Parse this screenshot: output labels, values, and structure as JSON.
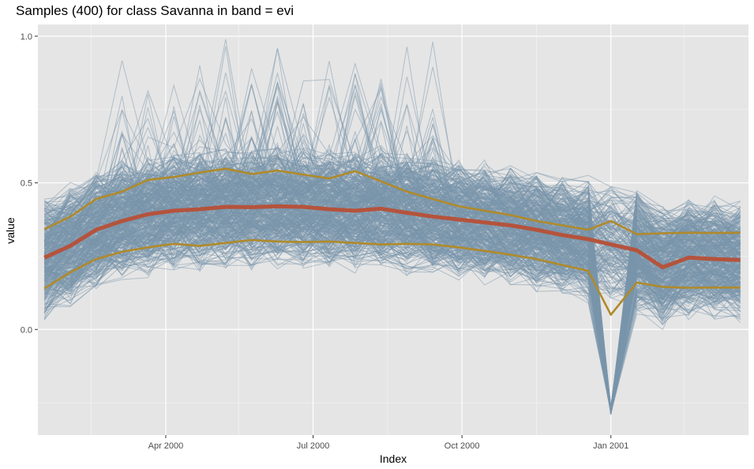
{
  "chart_data": {
    "type": "line",
    "title": "Samples (400) for class Savanna in band = evi",
    "xlabel": "Index",
    "ylabel": "value",
    "x_ticks": [
      {
        "label": "Apr 2000",
        "date": "2000-04-01"
      },
      {
        "label": "Jul 2000",
        "date": "2000-07-01"
      },
      {
        "label": "Oct 2000",
        "date": "2000-10-01"
      },
      {
        "label": "Jan 2001",
        "date": "2001-01-01"
      }
    ],
    "y_ticks": [
      0.0,
      0.5,
      1.0
    ],
    "y_tick_labels": [
      "0.0",
      "0.5",
      "1.0"
    ],
    "xlim": [
      "2000-01-13",
      "2001-03-27"
    ],
    "ylim": [
      -0.36,
      1.04
    ],
    "grid": true,
    "background": "#e5e5e5",
    "x": [
      "2000-01-17",
      "2000-02-02",
      "2000-02-18",
      "2000-03-05",
      "2000-03-21",
      "2000-04-06",
      "2000-04-22",
      "2000-05-08",
      "2000-05-24",
      "2000-06-09",
      "2000-06-25",
      "2000-07-11",
      "2000-07-27",
      "2000-08-12",
      "2000-08-28",
      "2000-09-13",
      "2000-09-29",
      "2000-10-15",
      "2000-10-31",
      "2000-11-16",
      "2000-12-02",
      "2000-12-18",
      "2001-01-01",
      "2001-01-17",
      "2001-02-02",
      "2001-02-18",
      "2001-03-06",
      "2001-03-22"
    ],
    "series": [
      {
        "role": "mean",
        "color": "#b5533c",
        "values": [
          0.245,
          0.285,
          0.34,
          0.37,
          0.393,
          0.405,
          0.41,
          0.418,
          0.417,
          0.42,
          0.418,
          0.41,
          0.405,
          0.412,
          0.398,
          0.385,
          0.375,
          0.365,
          0.355,
          0.34,
          0.322,
          0.308,
          0.29,
          0.27,
          0.212,
          0.245,
          0.24,
          0.237
        ]
      },
      {
        "role": "upper quantile",
        "color": "#b08a2a",
        "values": [
          0.342,
          0.385,
          0.445,
          0.47,
          0.51,
          0.52,
          0.535,
          0.548,
          0.53,
          0.542,
          0.528,
          0.515,
          0.54,
          0.505,
          0.47,
          0.445,
          0.42,
          0.405,
          0.39,
          0.37,
          0.355,
          0.34,
          0.37,
          0.325,
          0.328,
          0.33,
          0.329,
          0.33
        ]
      },
      {
        "role": "lower quantile",
        "color": "#b08a2a",
        "values": [
          0.14,
          0.195,
          0.24,
          0.265,
          0.28,
          0.292,
          0.285,
          0.295,
          0.305,
          0.3,
          0.298,
          0.3,
          0.295,
          0.29,
          0.292,
          0.29,
          0.28,
          0.268,
          0.255,
          0.24,
          0.22,
          0.2,
          0.05,
          0.16,
          0.145,
          0.142,
          0.143,
          0.143
        ]
      }
    ],
    "samples_count": 400,
    "samples_color": "#7a96ab"
  }
}
